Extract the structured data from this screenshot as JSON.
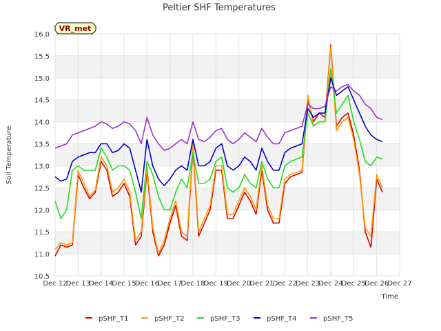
{
  "chart_data": {
    "type": "line",
    "title": "Peltier SHF Temperatures",
    "xlabel": "Time",
    "ylabel": "Soil Temperature",
    "badge": "VR_met",
    "x_ticks": [
      "Dec 12",
      "Dec 13",
      "Dec 14",
      "Dec 15",
      "Dec 16",
      "Dec 17",
      "Dec 18",
      "Dec 19",
      "Dec 20",
      "Dec 21",
      "Dec 22",
      "Dec 23",
      "Dec 24",
      "Dec 25",
      "Dec 26",
      "Dec 27"
    ],
    "y_ticks": [
      "10.5",
      "11.0",
      "11.5",
      "12.0",
      "12.5",
      "13.0",
      "13.5",
      "14.0",
      "14.5",
      "15.0",
      "15.5",
      "16.0"
    ],
    "ylim": [
      10.5,
      16.0
    ],
    "grid": true,
    "legend_position": "bottom",
    "x_days": [
      12.0,
      12.25,
      12.5,
      12.75,
      13.0,
      13.25,
      13.5,
      13.75,
      14.0,
      14.25,
      14.5,
      14.75,
      15.0,
      15.25,
      15.5,
      15.75,
      16.0,
      16.25,
      16.5,
      16.75,
      17.0,
      17.25,
      17.5,
      17.75,
      18.0,
      18.25,
      18.5,
      18.75,
      19.0,
      19.25,
      19.5,
      19.75,
      20.0,
      20.25,
      20.5,
      20.75,
      21.0,
      21.25,
      21.5,
      21.75,
      22.0,
      22.25,
      22.5,
      22.75,
      23.0,
      23.25,
      23.5,
      23.75,
      24.0,
      24.25,
      24.5,
      24.75,
      25.0,
      25.25,
      25.5,
      25.75,
      26.0,
      26.25
    ],
    "series": [
      {
        "name": "pSHF_T1",
        "color": "#dd0000",
        "values": [
          10.95,
          11.2,
          11.15,
          11.2,
          12.8,
          12.5,
          12.25,
          12.4,
          13.1,
          12.9,
          12.3,
          12.4,
          12.6,
          12.3,
          11.2,
          11.4,
          12.9,
          11.5,
          10.95,
          11.2,
          11.7,
          12.1,
          11.4,
          11.3,
          13.4,
          11.4,
          11.7,
          12.0,
          12.9,
          12.9,
          11.8,
          11.8,
          12.1,
          12.4,
          12.2,
          11.9,
          12.9,
          12.0,
          11.7,
          11.7,
          12.6,
          12.75,
          12.8,
          12.85,
          14.5,
          14.0,
          14.2,
          14.1,
          15.75,
          13.9,
          14.1,
          14.2,
          13.7,
          12.9,
          11.5,
          11.15,
          12.7,
          12.4
        ]
      },
      {
        "name": "pSHF_T2",
        "color": "#ff9900",
        "values": [
          11.1,
          11.25,
          11.2,
          11.25,
          12.9,
          12.6,
          12.3,
          12.45,
          13.2,
          13.0,
          12.4,
          12.5,
          12.7,
          12.4,
          11.3,
          11.5,
          13.0,
          11.6,
          11.0,
          11.3,
          11.8,
          12.2,
          11.5,
          11.4,
          13.5,
          11.5,
          11.8,
          12.1,
          13.0,
          13.0,
          11.9,
          11.9,
          12.2,
          12.5,
          12.3,
          12.0,
          13.0,
          12.1,
          11.8,
          11.8,
          12.7,
          12.8,
          12.85,
          12.9,
          14.6,
          13.9,
          14.0,
          14.0,
          15.7,
          13.8,
          14.0,
          14.1,
          13.6,
          12.8,
          11.6,
          11.4,
          12.8,
          12.5
        ]
      },
      {
        "name": "pSHF_T3",
        "color": "#22dd22",
        "values": [
          12.2,
          11.8,
          12.0,
          12.9,
          13.0,
          12.9,
          12.9,
          12.9,
          13.4,
          13.2,
          12.9,
          13.0,
          13.0,
          12.9,
          12.4,
          11.8,
          13.1,
          12.8,
          12.3,
          12.0,
          12.0,
          12.4,
          12.7,
          12.5,
          13.3,
          12.6,
          12.6,
          12.7,
          13.1,
          13.2,
          12.5,
          12.4,
          12.5,
          12.8,
          12.6,
          12.5,
          13.1,
          12.7,
          12.5,
          12.5,
          13.0,
          13.1,
          13.15,
          13.2,
          14.2,
          13.9,
          14.0,
          14.0,
          15.2,
          14.2,
          14.4,
          14.6,
          14.0,
          13.6,
          13.1,
          13.0,
          13.2,
          13.15
        ]
      },
      {
        "name": "pSHF_T4",
        "color": "#0000cc",
        "values": [
          12.75,
          12.65,
          12.7,
          13.1,
          13.2,
          13.25,
          13.3,
          13.3,
          13.5,
          13.5,
          13.3,
          13.35,
          13.5,
          13.4,
          12.9,
          12.4,
          13.6,
          13.0,
          12.7,
          12.55,
          12.7,
          12.9,
          13.0,
          12.9,
          13.6,
          13.0,
          13.0,
          13.1,
          13.4,
          13.5,
          13.0,
          12.9,
          13.0,
          13.2,
          13.1,
          12.9,
          13.4,
          13.1,
          12.9,
          12.9,
          13.3,
          13.4,
          13.45,
          13.5,
          14.3,
          14.1,
          14.2,
          14.2,
          15.0,
          14.6,
          14.7,
          14.8,
          14.5,
          14.2,
          13.9,
          13.7,
          13.6,
          13.55
        ]
      },
      {
        "name": "pSHF_T5",
        "color": "#9933cc",
        "values": [
          13.4,
          13.45,
          13.5,
          13.7,
          13.75,
          13.8,
          13.85,
          13.9,
          14.0,
          13.95,
          13.85,
          13.9,
          14.0,
          13.95,
          13.8,
          13.5,
          14.1,
          13.7,
          13.5,
          13.35,
          13.4,
          13.5,
          13.6,
          13.5,
          14.0,
          13.6,
          13.55,
          13.65,
          13.8,
          13.85,
          13.6,
          13.5,
          13.6,
          13.75,
          13.65,
          13.55,
          13.85,
          13.65,
          13.5,
          13.5,
          13.75,
          13.8,
          13.85,
          13.9,
          14.4,
          14.3,
          14.3,
          14.35,
          14.8,
          14.7,
          14.8,
          14.85,
          14.7,
          14.6,
          14.4,
          14.3,
          14.1,
          14.05
        ]
      }
    ]
  }
}
